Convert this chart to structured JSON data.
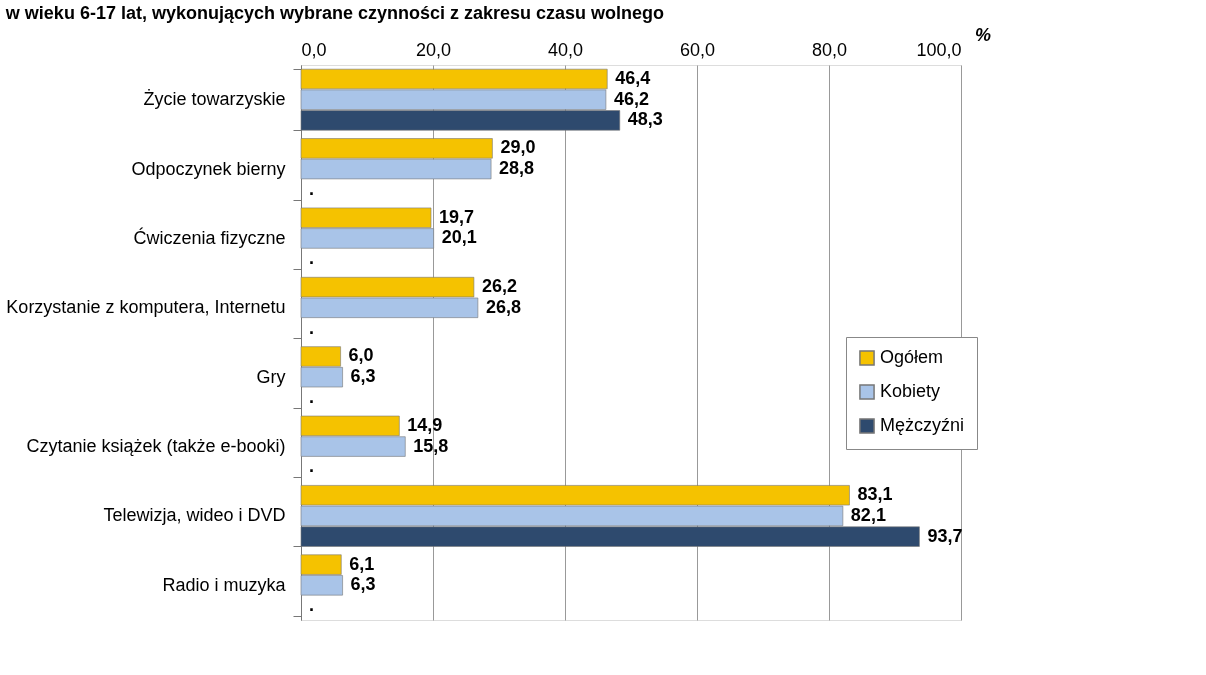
{
  "chart_data": {
    "type": "bar",
    "orientation": "horizontal",
    "title": "w wieku 6-17 lat, wykonujących wybrane czynności z zakresu czasu wolnego",
    "xlabel": "%",
    "categories": [
      "Życie towarzyskie",
      "Odpoczynek bierny",
      "Ćwiczenia fizyczne",
      "Korzystanie z komputera, Internetu",
      "Gry",
      "Czytanie książek (także e-booki)",
      "Telewizja, wideo i DVD",
      "Radio i muzyka"
    ],
    "series": [
      {
        "name": "Ogółem",
        "color": "#f5c200",
        "values": [
          46.4,
          29.0,
          19.7,
          26.2,
          6.0,
          14.9,
          83.1,
          6.1
        ],
        "value_labels": [
          "46,4",
          "29,0",
          "19,7",
          "26,2",
          "6,0",
          "14,9",
          "83,1",
          "6,1"
        ]
      },
      {
        "name": "Kobiety",
        "color": "#a9c4e8",
        "values": [
          46.2,
          28.8,
          20.1,
          26.8,
          6.3,
          15.8,
          82.1,
          6.3
        ],
        "value_labels": [
          "46,2",
          "28,8",
          "20,1",
          "26,8",
          "6,3",
          "15,8",
          "82,1",
          "6,3"
        ]
      },
      {
        "name": "Mężczyźni",
        "color": "#2e4a6e",
        "values": [
          48.3,
          null,
          null,
          null,
          null,
          null,
          93.7,
          null
        ],
        "value_labels": [
          "48,3",
          ".",
          ".",
          ".",
          ".",
          ".",
          "93,7",
          "."
        ]
      }
    ],
    "xlim": [
      0,
      100
    ],
    "xticks": [
      {
        "value": 0,
        "label": "0,0"
      },
      {
        "value": 20,
        "label": "20,0"
      },
      {
        "value": 40,
        "label": "40,0"
      },
      {
        "value": 60,
        "label": "60,0"
      },
      {
        "value": 80,
        "label": "80,0"
      },
      {
        "value": 100,
        "label": "100,0"
      }
    ],
    "grid": "x",
    "legend": "right"
  }
}
